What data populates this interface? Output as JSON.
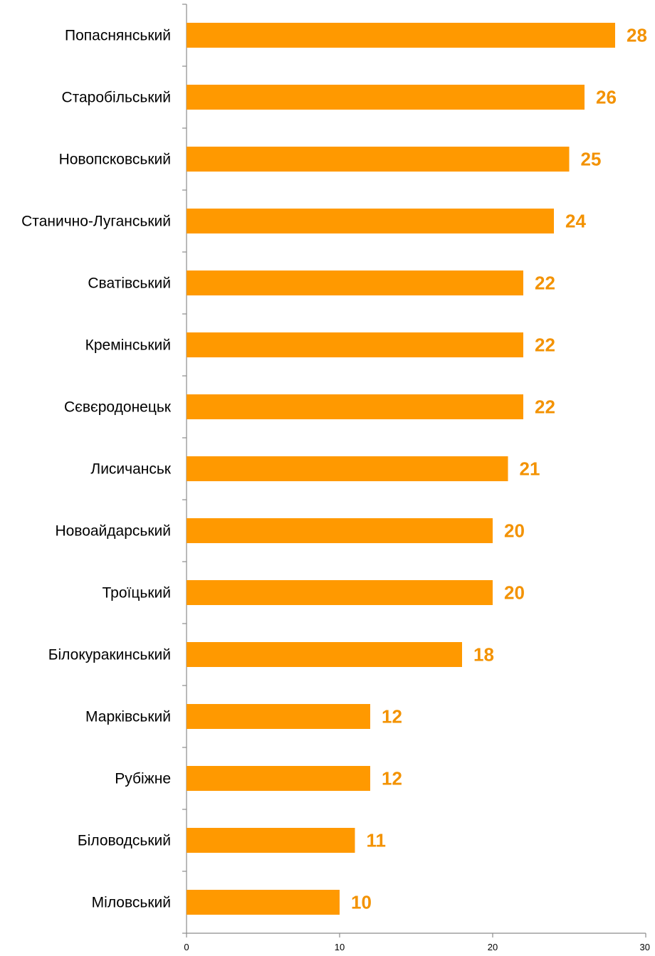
{
  "chart_data": {
    "type": "bar",
    "orientation": "horizontal",
    "categories": [
      "Попаснянський",
      "Старобільський",
      "Новопсковський",
      "Станично-Луганський",
      "Сватівський",
      "Кремінський",
      "Сєвєродонецьк",
      "Лисичанськ",
      "Новоайдарський",
      "Троїцький",
      "Білокуракинський",
      "Марківський",
      "Рубіжне",
      "Біловодський",
      "Міловський"
    ],
    "values": [
      28,
      26,
      25,
      24,
      22,
      22,
      22,
      21,
      20,
      20,
      18,
      12,
      12,
      11,
      10
    ],
    "xlim": [
      0,
      30
    ],
    "xticks": [
      0,
      10,
      20,
      30
    ],
    "xtick_labels": [
      "0",
      "10",
      "20",
      "30"
    ],
    "grid": false,
    "legend": "none",
    "title": "",
    "xlabel": "",
    "ylabel": "",
    "colors": {
      "bar": "#ff9900",
      "value_label": "#f39200",
      "axis": "#8c8c8c"
    }
  }
}
